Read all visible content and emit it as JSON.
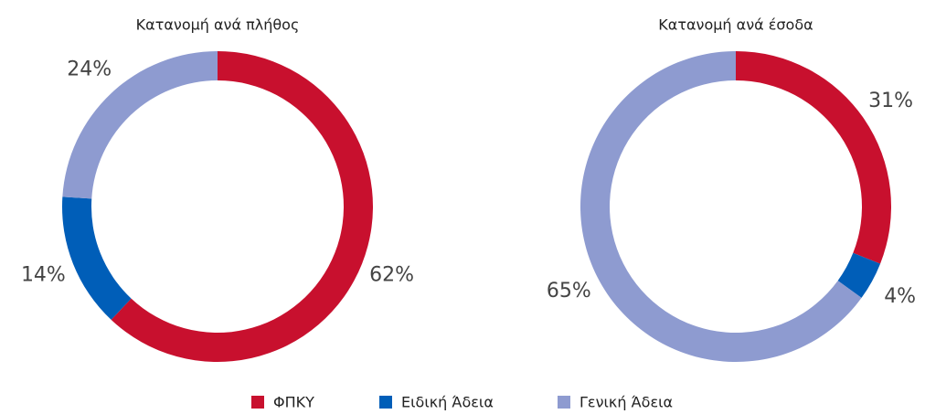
{
  "chart_data": [
    {
      "type": "donut",
      "title": "Κατανομή ανά πλήθος",
      "categories": [
        "ΦΠΚΥ",
        "Ειδική Άδεια",
        "Γενική Άδεια"
      ],
      "values": [
        62,
        14,
        24
      ],
      "value_labels": [
        "62%",
        "14%",
        "24%"
      ],
      "colors": [
        "#c8102e",
        "#005eb8",
        "#8e9bd0"
      ]
    },
    {
      "type": "donut",
      "title": "Κατανομή ανά έσοδα",
      "categories": [
        "ΦΠΚΥ",
        "Ειδική Άδεια",
        "Γενική Άδεια"
      ],
      "values": [
        31,
        4,
        65
      ],
      "value_labels": [
        "31%",
        "4%",
        "65%"
      ],
      "colors": [
        "#c8102e",
        "#005eb8",
        "#8e9bd0"
      ]
    }
  ]
}
